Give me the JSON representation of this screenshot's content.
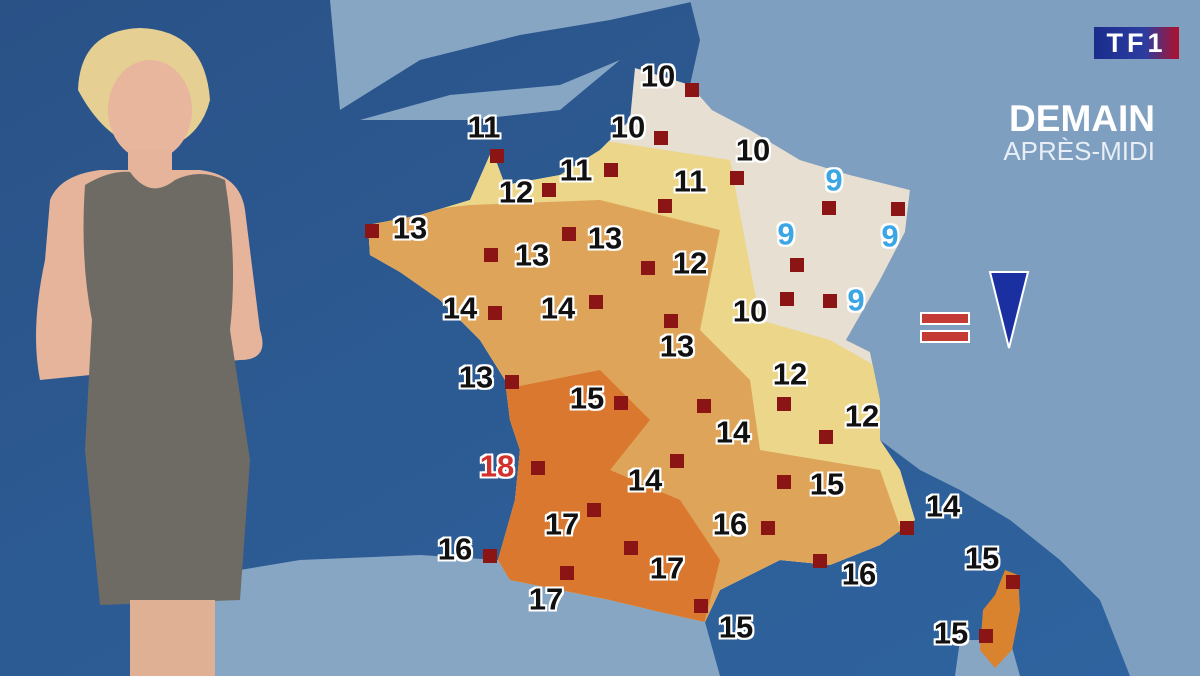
{
  "broadcast": {
    "channel_logo": "TF1",
    "title": "DEMAIN",
    "subtitle": "APRÈS-MIDI"
  },
  "colors": {
    "sea": "#2c5a8e",
    "neighbor_land": "#86a6c4",
    "cool_zone": "#e6dfd2",
    "mild_zone": "#ecd68a",
    "warm_zone": "#dea55a",
    "hot_zone": "#d9782e",
    "marker": "#8b1414",
    "cold_temp": "#3aa6e6",
    "max_temp": "#d3322c"
  },
  "legend_symbols": [
    "equal-trend-icon",
    "down-trend-triangle-icon"
  ],
  "stations": [
    {
      "temp": "10",
      "style": "normal"
    },
    {
      "temp": "11",
      "style": "normal"
    },
    {
      "temp": "10",
      "style": "normal"
    },
    {
      "temp": "10",
      "style": "normal"
    },
    {
      "temp": "11",
      "style": "normal"
    },
    {
      "temp": "12",
      "style": "normal"
    },
    {
      "temp": "11",
      "style": "normal"
    },
    {
      "temp": "9",
      "style": "cold"
    },
    {
      "temp": "13",
      "style": "normal"
    },
    {
      "temp": "13",
      "style": "normal"
    },
    {
      "temp": "13",
      "style": "normal"
    },
    {
      "temp": "12",
      "style": "normal"
    },
    {
      "temp": "9",
      "style": "cold"
    },
    {
      "temp": "9",
      "style": "cold"
    },
    {
      "temp": "14",
      "style": "normal"
    },
    {
      "temp": "14",
      "style": "normal"
    },
    {
      "temp": "10",
      "style": "normal"
    },
    {
      "temp": "9",
      "style": "cold"
    },
    {
      "temp": "13",
      "style": "normal"
    },
    {
      "temp": "13",
      "style": "normal"
    },
    {
      "temp": "15",
      "style": "normal"
    },
    {
      "temp": "12",
      "style": "normal"
    },
    {
      "temp": "14",
      "style": "normal"
    },
    {
      "temp": "12",
      "style": "normal"
    },
    {
      "temp": "18",
      "style": "warm"
    },
    {
      "temp": "14",
      "style": "normal"
    },
    {
      "temp": "15",
      "style": "normal"
    },
    {
      "temp": "17",
      "style": "normal"
    },
    {
      "temp": "16",
      "style": "normal"
    },
    {
      "temp": "14",
      "style": "normal"
    },
    {
      "temp": "16",
      "style": "normal"
    },
    {
      "temp": "17",
      "style": "normal"
    },
    {
      "temp": "16",
      "style": "normal"
    },
    {
      "temp": "15",
      "style": "normal"
    },
    {
      "temp": "17",
      "style": "normal"
    },
    {
      "temp": "15",
      "style": "normal"
    },
    {
      "temp": "15",
      "style": "normal"
    }
  ]
}
